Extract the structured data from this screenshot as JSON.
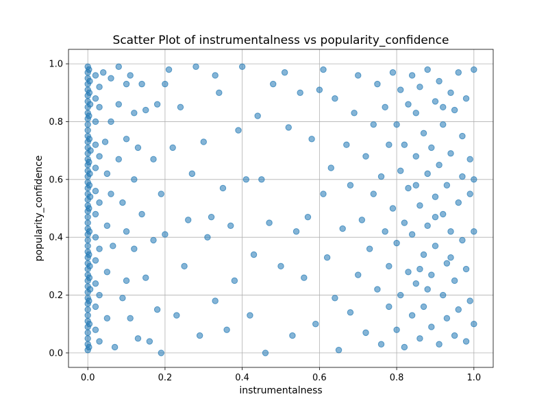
{
  "chart_data": {
    "type": "scatter",
    "title": "Scatter Plot of instrumentalness vs popularity_confidence",
    "xlabel": "instrumentalness",
    "ylabel": "popularity_confidence",
    "xlim": [
      -0.05,
      1.05
    ],
    "ylim": [
      -0.05,
      1.05
    ],
    "xticks": [
      "0.0",
      "0.2",
      "0.4",
      "0.6",
      "0.8",
      "1.0"
    ],
    "yticks": [
      "0.0",
      "0.2",
      "0.4",
      "0.6",
      "0.8",
      "1.0"
    ],
    "grid": true,
    "marker_color": "#1f77b4",
    "marker_alpha": 0.55,
    "points": [
      [
        0.0,
        0.99
      ],
      [
        0.0,
        0.97
      ],
      [
        0.0,
        0.95
      ],
      [
        0.0,
        0.93
      ],
      [
        0.0,
        0.91
      ],
      [
        0.0,
        0.89
      ],
      [
        0.0,
        0.87
      ],
      [
        0.0,
        0.85
      ],
      [
        0.0,
        0.83
      ],
      [
        0.0,
        0.81
      ],
      [
        0.0,
        0.79
      ],
      [
        0.0,
        0.77
      ],
      [
        0.0,
        0.75
      ],
      [
        0.0,
        0.73
      ],
      [
        0.0,
        0.71
      ],
      [
        0.0,
        0.69
      ],
      [
        0.0,
        0.67
      ],
      [
        0.0,
        0.65
      ],
      [
        0.0,
        0.63
      ],
      [
        0.0,
        0.61
      ],
      [
        0.0,
        0.59
      ],
      [
        0.0,
        0.57
      ],
      [
        0.0,
        0.55
      ],
      [
        0.0,
        0.53
      ],
      [
        0.0,
        0.51
      ],
      [
        0.0,
        0.49
      ],
      [
        0.0,
        0.47
      ],
      [
        0.0,
        0.45
      ],
      [
        0.0,
        0.43
      ],
      [
        0.0,
        0.41
      ],
      [
        0.0,
        0.39
      ],
      [
        0.0,
        0.37
      ],
      [
        0.0,
        0.35
      ],
      [
        0.0,
        0.33
      ],
      [
        0.0,
        0.31
      ],
      [
        0.0,
        0.29
      ],
      [
        0.0,
        0.27
      ],
      [
        0.0,
        0.25
      ],
      [
        0.0,
        0.23
      ],
      [
        0.0,
        0.21
      ],
      [
        0.0,
        0.19
      ],
      [
        0.0,
        0.17
      ],
      [
        0.0,
        0.15
      ],
      [
        0.0,
        0.13
      ],
      [
        0.0,
        0.11
      ],
      [
        0.0,
        0.09
      ],
      [
        0.0,
        0.07
      ],
      [
        0.0,
        0.05
      ],
      [
        0.0,
        0.03
      ],
      [
        0.0,
        0.01
      ],
      [
        0.003,
        0.98
      ],
      [
        0.004,
        0.9
      ],
      [
        0.003,
        0.82
      ],
      [
        0.004,
        0.74
      ],
      [
        0.003,
        0.66
      ],
      [
        0.004,
        0.58
      ],
      [
        0.003,
        0.5
      ],
      [
        0.004,
        0.42
      ],
      [
        0.003,
        0.34
      ],
      [
        0.004,
        0.26
      ],
      [
        0.003,
        0.18
      ],
      [
        0.004,
        0.1
      ],
      [
        0.003,
        0.02
      ],
      [
        0.005,
        0.94
      ],
      [
        0.005,
        0.62
      ],
      [
        0.005,
        0.3
      ],
      [
        0.006,
        0.86
      ],
      [
        0.006,
        0.54
      ],
      [
        0.006,
        0.22
      ],
      [
        0.007,
        0.7
      ],
      [
        0.02,
        0.96
      ],
      [
        0.02,
        0.88
      ],
      [
        0.02,
        0.8
      ],
      [
        0.02,
        0.72
      ],
      [
        0.02,
        0.64
      ],
      [
        0.02,
        0.56
      ],
      [
        0.02,
        0.48
      ],
      [
        0.02,
        0.4
      ],
      [
        0.02,
        0.32
      ],
      [
        0.02,
        0.24
      ],
      [
        0.02,
        0.16
      ],
      [
        0.02,
        0.08
      ],
      [
        0.03,
        0.92
      ],
      [
        0.03,
        0.85
      ],
      [
        0.03,
        0.68
      ],
      [
        0.03,
        0.52
      ],
      [
        0.03,
        0.36
      ],
      [
        0.03,
        0.2
      ],
      [
        0.03,
        0.04
      ],
      [
        0.04,
        0.97
      ],
      [
        0.045,
        0.73
      ],
      [
        0.05,
        0.62
      ],
      [
        0.05,
        0.44
      ],
      [
        0.05,
        0.28
      ],
      [
        0.05,
        0.12
      ],
      [
        0.06,
        0.95
      ],
      [
        0.06,
        0.8
      ],
      [
        0.06,
        0.55
      ],
      [
        0.065,
        0.37
      ],
      [
        0.07,
        0.02
      ],
      [
        0.08,
        0.99
      ],
      [
        0.08,
        0.86
      ],
      [
        0.08,
        0.67
      ],
      [
        0.09,
        0.52
      ],
      [
        0.09,
        0.19
      ],
      [
        0.1,
        0.93
      ],
      [
        0.1,
        0.74
      ],
      [
        0.1,
        0.42
      ],
      [
        0.1,
        0.25
      ],
      [
        0.11,
        0.96
      ],
      [
        0.11,
        0.12
      ],
      [
        0.12,
        0.83
      ],
      [
        0.12,
        0.6
      ],
      [
        0.12,
        0.36
      ],
      [
        0.13,
        0.71
      ],
      [
        0.13,
        0.05
      ],
      [
        0.14,
        0.93
      ],
      [
        0.14,
        0.48
      ],
      [
        0.15,
        0.84
      ],
      [
        0.15,
        0.26
      ],
      [
        0.16,
        0.04
      ],
      [
        0.17,
        0.67
      ],
      [
        0.17,
        0.39
      ],
      [
        0.18,
        0.86
      ],
      [
        0.18,
        0.15
      ],
      [
        0.19,
        0.55
      ],
      [
        0.19,
        0.0
      ],
      [
        0.2,
        0.41
      ],
      [
        0.2,
        0.93
      ],
      [
        0.21,
        0.98
      ],
      [
        0.22,
        0.71
      ],
      [
        0.23,
        0.13
      ],
      [
        0.24,
        0.85
      ],
      [
        0.25,
        0.3
      ],
      [
        0.26,
        0.46
      ],
      [
        0.27,
        0.62
      ],
      [
        0.28,
        0.99
      ],
      [
        0.29,
        0.06
      ],
      [
        0.3,
        0.73
      ],
      [
        0.31,
        0.4
      ],
      [
        0.32,
        0.47
      ],
      [
        0.33,
        0.96
      ],
      [
        0.33,
        0.18
      ],
      [
        0.34,
        0.9
      ],
      [
        0.35,
        0.57
      ],
      [
        0.36,
        0.08
      ],
      [
        0.37,
        0.44
      ],
      [
        0.38,
        0.25
      ],
      [
        0.39,
        0.77
      ],
      [
        0.4,
        0.99
      ],
      [
        0.41,
        0.6
      ],
      [
        0.42,
        0.13
      ],
      [
        0.43,
        0.34
      ],
      [
        0.44,
        0.82
      ],
      [
        0.45,
        0.6
      ],
      [
        0.46,
        0.0
      ],
      [
        0.47,
        0.45
      ],
      [
        0.48,
        0.93
      ],
      [
        0.5,
        0.3
      ],
      [
        0.51,
        0.97
      ],
      [
        0.52,
        0.78
      ],
      [
        0.53,
        0.06
      ],
      [
        0.54,
        0.42
      ],
      [
        0.55,
        0.9
      ],
      [
        0.56,
        0.26
      ],
      [
        0.57,
        0.47
      ],
      [
        0.58,
        0.74
      ],
      [
        0.59,
        0.1
      ],
      [
        0.6,
        0.91
      ],
      [
        0.61,
        0.55
      ],
      [
        0.61,
        0.98
      ],
      [
        0.62,
        0.33
      ],
      [
        0.63,
        0.64
      ],
      [
        0.64,
        0.19
      ],
      [
        0.64,
        0.88
      ],
      [
        0.65,
        0.01
      ],
      [
        0.66,
        0.43
      ],
      [
        0.67,
        0.72
      ],
      [
        0.68,
        0.14
      ],
      [
        0.68,
        0.58
      ],
      [
        0.69,
        0.83
      ],
      [
        0.7,
        0.27
      ],
      [
        0.7,
        0.96
      ],
      [
        0.71,
        0.46
      ],
      [
        0.72,
        0.68
      ],
      [
        0.72,
        0.07
      ],
      [
        0.73,
        0.36
      ],
      [
        0.74,
        0.79
      ],
      [
        0.74,
        0.55
      ],
      [
        0.75,
        0.22
      ],
      [
        0.75,
        0.93
      ],
      [
        0.76,
        0.03
      ],
      [
        0.76,
        0.61
      ],
      [
        0.77,
        0.42
      ],
      [
        0.77,
        0.85
      ],
      [
        0.78,
        0.16
      ],
      [
        0.78,
        0.72
      ],
      [
        0.78,
        0.3
      ],
      [
        0.79,
        0.97
      ],
      [
        0.79,
        0.5
      ],
      [
        0.8,
        0.08
      ],
      [
        0.8,
        0.79
      ],
      [
        0.8,
        0.38
      ],
      [
        0.81,
        0.63
      ],
      [
        0.81,
        0.2
      ],
      [
        0.81,
        0.91
      ],
      [
        0.82,
        0.45
      ],
      [
        0.82,
        0.02
      ],
      [
        0.82,
        0.72
      ],
      [
        0.83,
        0.28
      ],
      [
        0.83,
        0.86
      ],
      [
        0.83,
        0.57
      ],
      [
        0.84,
        0.13
      ],
      [
        0.84,
        0.96
      ],
      [
        0.84,
        0.41
      ],
      [
        0.85,
        0.68
      ],
      [
        0.85,
        0.24
      ],
      [
        0.85,
        0.83
      ],
      [
        0.86,
        0.05
      ],
      [
        0.86,
        0.51
      ],
      [
        0.86,
        0.92
      ],
      [
        0.87,
        0.34
      ],
      [
        0.87,
        0.76
      ],
      [
        0.87,
        0.16
      ],
      [
        0.88,
        0.62
      ],
      [
        0.88,
        0.44
      ],
      [
        0.88,
        0.98
      ],
      [
        0.89,
        0.09
      ],
      [
        0.89,
        0.71
      ],
      [
        0.89,
        0.27
      ],
      [
        0.9,
        0.87
      ],
      [
        0.9,
        0.54
      ],
      [
        0.9,
        0.37
      ],
      [
        0.91,
        0.03
      ],
      [
        0.91,
        0.65
      ],
      [
        0.91,
        0.94
      ],
      [
        0.92,
        0.2
      ],
      [
        0.92,
        0.48
      ],
      [
        0.92,
        0.79
      ],
      [
        0.93,
        0.12
      ],
      [
        0.93,
        0.58
      ],
      [
        0.93,
        0.31
      ],
      [
        0.94,
        0.9
      ],
      [
        0.94,
        0.42
      ],
      [
        0.94,
        0.69
      ],
      [
        0.95,
        0.06
      ],
      [
        0.95,
        0.84
      ],
      [
        0.95,
        0.25
      ],
      [
        0.96,
        0.52
      ],
      [
        0.96,
        0.97
      ],
      [
        0.96,
        0.15
      ],
      [
        0.97,
        0.75
      ],
      [
        0.97,
        0.39
      ],
      [
        0.97,
        0.61
      ],
      [
        0.98,
        0.04
      ],
      [
        0.98,
        0.88
      ],
      [
        0.98,
        0.29
      ],
      [
        0.99,
        0.55
      ],
      [
        0.99,
        0.18
      ],
      [
        0.99,
        0.67
      ],
      [
        1.0,
        0.98
      ],
      [
        1.0,
        0.42
      ],
      [
        1.0,
        0.1
      ],
      [
        1.0,
        0.6
      ],
      [
        0.85,
        0.58
      ],
      [
        0.88,
        0.22
      ],
      [
        0.9,
        0.47
      ],
      [
        0.86,
        0.29
      ],
      [
        0.92,
        0.85
      ],
      [
        0.94,
        0.33
      ]
    ]
  }
}
